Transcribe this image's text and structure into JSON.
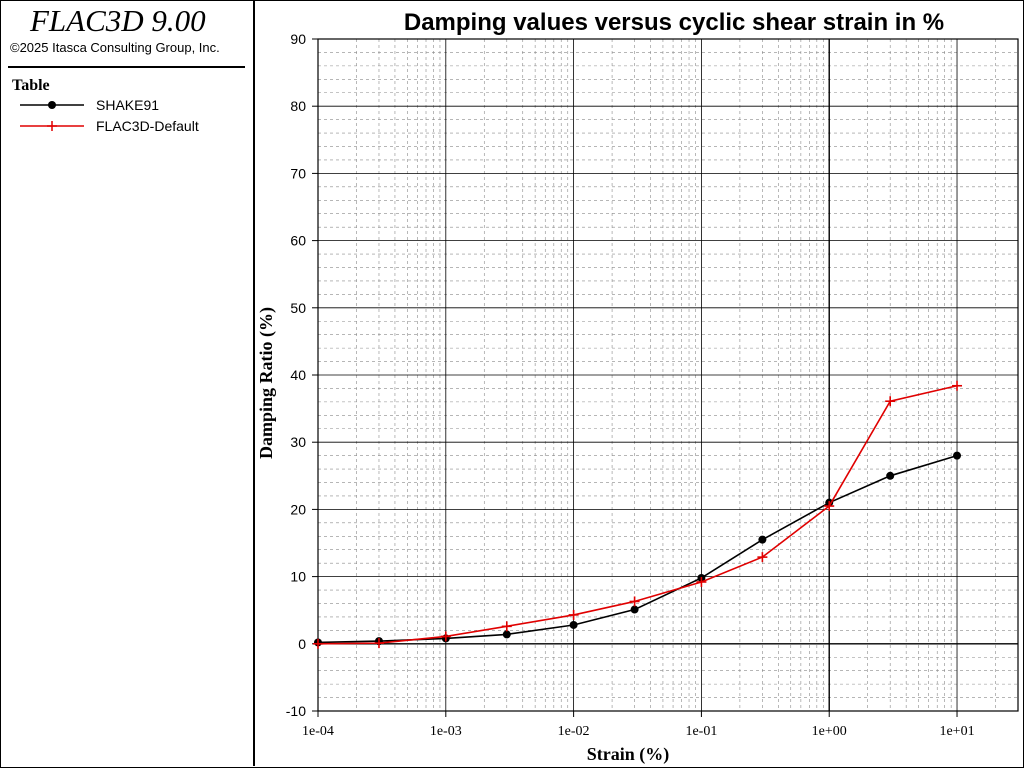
{
  "app": {
    "title": "FLAC3D 9.00",
    "copyright": "©2025 Itasca Consulting Group, Inc."
  },
  "legend": {
    "heading": "Table",
    "items": [
      {
        "label": "SHAKE91",
        "color": "#000000",
        "marker": "circle"
      },
      {
        "label": "FLAC3D-Default",
        "color": "#e00000",
        "marker": "plus"
      }
    ]
  },
  "chart_data": {
    "type": "line",
    "title": "Damping values versus cyclic shear strain in %",
    "xlabel": "Strain (%)",
    "ylabel": "Damping Ratio (%)",
    "xscale": "log",
    "xlim": [
      0.0001,
      30
    ],
    "ylim": [
      -10,
      90
    ],
    "xticks": [
      0.0001,
      0.001,
      0.01,
      0.1,
      1,
      10
    ],
    "xtick_labels": [
      "1e-04",
      "1e-03",
      "1e-02",
      "1e-01",
      "1e+00",
      "1e+01"
    ],
    "yticks": [
      -10,
      0,
      10,
      20,
      30,
      40,
      50,
      60,
      70,
      80,
      90
    ],
    "ytick_labels": [
      "-10",
      "0",
      "10",
      "20",
      "30",
      "40",
      "50",
      "60",
      "70",
      "80",
      "90"
    ],
    "grid": true,
    "series": [
      {
        "name": "SHAKE91",
        "color": "#000000",
        "marker": "circle",
        "x": [
          0.0001,
          0.0003,
          0.001,
          0.003,
          0.01,
          0.03,
          0.1,
          0.3,
          1,
          3,
          10
        ],
        "y": [
          0.2,
          0.4,
          0.8,
          1.4,
          2.8,
          5.1,
          9.8,
          15.5,
          21.0,
          25.0,
          28.0
        ]
      },
      {
        "name": "FLAC3D-Default",
        "color": "#e00000",
        "marker": "plus",
        "x": [
          0.0001,
          0.0003,
          0.001,
          0.003,
          0.01,
          0.03,
          0.1,
          0.3,
          1,
          3,
          10
        ],
        "y": [
          0.0,
          0.1,
          1.1,
          2.6,
          4.3,
          6.3,
          9.2,
          12.9,
          20.5,
          36.1,
          38.4
        ]
      }
    ]
  }
}
